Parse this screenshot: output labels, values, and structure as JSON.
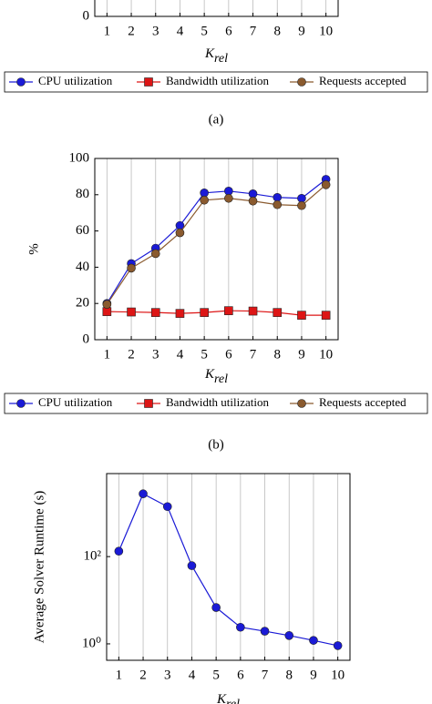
{
  "chart_data": [
    {
      "type": "line",
      "caption": "(a)",
      "xlabel": "K",
      "xlabel_subscript": "rel",
      "xlim": [
        0.5,
        10.5
      ],
      "xticks": [
        1,
        2,
        3,
        4,
        5,
        6,
        7,
        8,
        9,
        10
      ],
      "yticks": [
        0
      ],
      "grid": "x",
      "series": [
        {
          "name": "CPU utilization",
          "color": "#1a1ad6",
          "marker": "circle"
        },
        {
          "name": "Bandwidth utilization",
          "color": "#dd1515",
          "marker": "square"
        },
        {
          "name": "Requests accepted",
          "color": "#8a5a2e",
          "marker": "circle"
        }
      ]
    },
    {
      "type": "line",
      "caption": "(b)",
      "xlabel": "K",
      "xlabel_subscript": "rel",
      "ylabel": "%",
      "x": [
        1,
        2,
        3,
        4,
        5,
        6,
        7,
        8,
        9,
        10
      ],
      "xlim": [
        0.5,
        10.5
      ],
      "xticks": [
        1,
        2,
        3,
        4,
        5,
        6,
        7,
        8,
        9,
        10
      ],
      "ylim": [
        0,
        100
      ],
      "yticks": [
        0,
        20,
        40,
        60,
        80,
        100
      ],
      "grid": "x",
      "series": [
        {
          "name": "CPU utilization",
          "color": "#1a1ad6",
          "marker": "circle",
          "values": [
            20,
            42,
            50.5,
            63,
            81,
            82,
            80.5,
            78.5,
            78,
            88.5
          ]
        },
        {
          "name": "Bandwidth utilization",
          "color": "#dd1515",
          "marker": "square",
          "values": [
            15.5,
            15.3,
            15,
            14.5,
            15,
            16,
            15.8,
            15,
            13.5,
            13.5
          ]
        },
        {
          "name": "Requests accepted",
          "color": "#8a5a2e",
          "marker": "circle",
          "values": [
            19.5,
            39.5,
            47.5,
            59,
            77,
            78,
            76.5,
            74.5,
            74,
            85.5
          ]
        }
      ]
    },
    {
      "type": "line",
      "xlabel": "K",
      "xlabel_subscript": "rel",
      "ylabel": "Average Solver Runtime (s)",
      "x": [
        1,
        2,
        3,
        4,
        5,
        6,
        7,
        8,
        9,
        10
      ],
      "xlim": [
        0.5,
        10.5
      ],
      "xticks": [
        1,
        2,
        3,
        4,
        5,
        6,
        7,
        8,
        9,
        10
      ],
      "ylim": [
        0.42,
        8000
      ],
      "ylog": true,
      "yticks": [
        {
          "value": 1,
          "label": "10⁰"
        },
        {
          "value": 100,
          "label": "10²"
        }
      ],
      "grid": "x",
      "series": [
        {
          "color": "#1a1ad6",
          "marker": "circle",
          "values": [
            133,
            2750,
            1400,
            62,
            6.8,
            2.4,
            1.95,
            1.55,
            1.2,
            0.91
          ]
        }
      ]
    }
  ]
}
